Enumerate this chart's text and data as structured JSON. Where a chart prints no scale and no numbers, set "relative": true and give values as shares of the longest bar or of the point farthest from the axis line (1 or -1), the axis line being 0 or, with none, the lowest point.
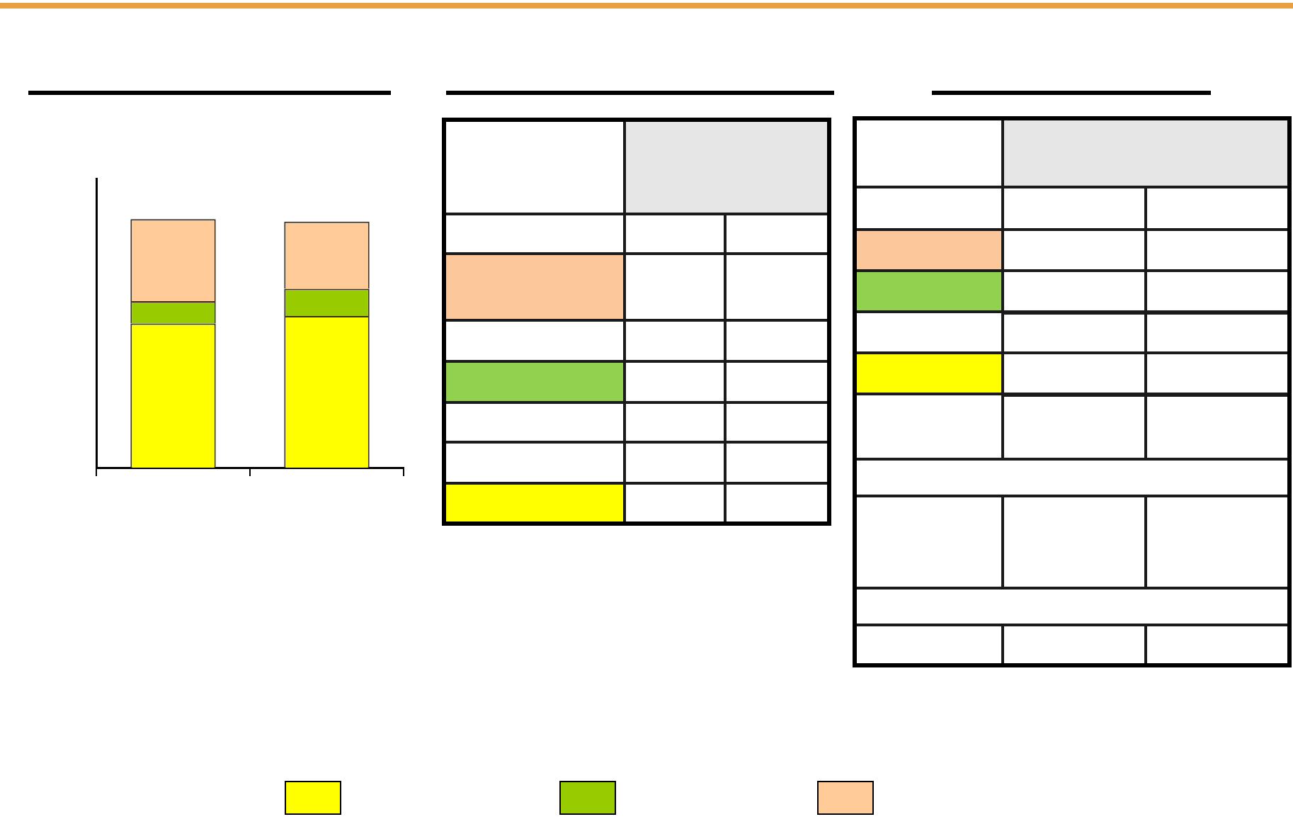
{
  "chart_data": {
    "type": "bar",
    "stacked": true,
    "relative": true,
    "categories": [
      null,
      null
    ],
    "series": [
      {
        "color": "#ffff00",
        "values": [
          0.58,
          0.61
        ]
      },
      {
        "color": "#99cc00",
        "values": [
          0.09,
          0.11
        ]
      },
      {
        "color": "#ffcc99",
        "values": [
          0.33,
          0.27
        ]
      }
    ]
  }
}
